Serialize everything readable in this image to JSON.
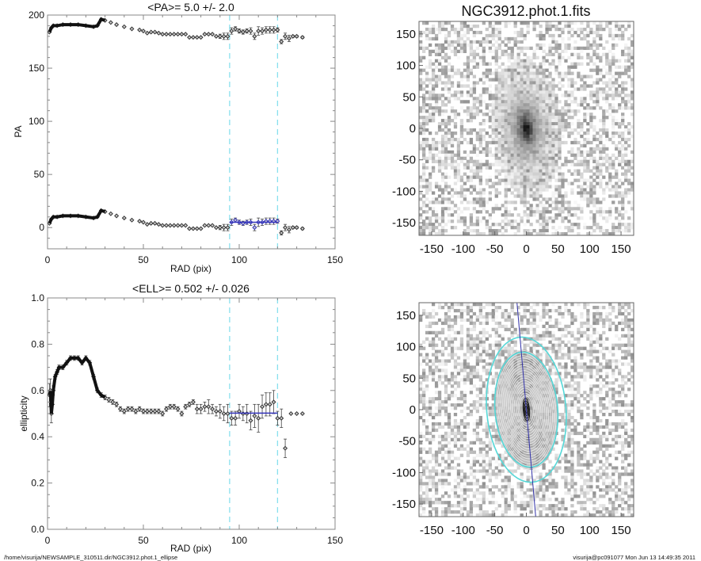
{
  "footer": {
    "path": "/home/visurija/NEWSAMPLE_310511.dir/NGC3912.phot.1_ellipse",
    "user_time": "visurija@pc091077  Mon Jun 13 14:49:35 2011"
  },
  "colors": {
    "fit": "#3333bb",
    "fit_range": "#88e0ee",
    "data": "#333333",
    "ellipse": "#55d8d8",
    "axis_line": "#3333aa"
  },
  "chart_data": [
    {
      "id": "pa",
      "type": "scatter",
      "title": "<PA>=   5.0 +/-   2.0",
      "xlabel": "RAD (pix)",
      "ylabel": "PA",
      "xlim": [
        0,
        150
      ],
      "ylim": [
        -20,
        200
      ],
      "xticks": [
        "0",
        "50",
        "100",
        "150"
      ],
      "yticks": [
        "0",
        "50",
        "100",
        "150",
        "200"
      ],
      "fit_range": [
        95,
        120
      ],
      "fit_value": 5.0,
      "series": [
        {
          "name": "PA",
          "x": [
            1,
            2,
            3,
            5,
            8,
            12,
            16,
            20,
            24,
            26,
            28,
            30,
            33,
            36,
            40,
            44,
            48,
            50,
            52,
            54,
            56,
            58,
            60,
            62,
            64,
            66,
            68,
            70,
            72,
            74,
            76,
            78,
            80,
            82,
            84,
            86,
            88,
            90,
            92,
            94,
            96,
            98,
            100,
            102,
            104,
            106,
            108,
            110,
            112,
            114,
            116,
            118,
            120,
            122,
            124,
            126,
            128,
            130,
            133
          ],
          "y": [
            4,
            8,
            10,
            10,
            11,
            11,
            11,
            10,
            9,
            10,
            16,
            15,
            13,
            11,
            9,
            7,
            6,
            5,
            3,
            4,
            4,
            3,
            2,
            2,
            2,
            2,
            2,
            2,
            2,
            -1,
            -1,
            -1,
            -1,
            2,
            2,
            2,
            0,
            0,
            0,
            0,
            5,
            7,
            5,
            4,
            5,
            5,
            0,
            5,
            5,
            6,
            6,
            6,
            6,
            -5,
            0,
            -2,
            0,
            0,
            -1
          ],
          "err": [
            0,
            0,
            0,
            0,
            0,
            0,
            0,
            0,
            0,
            0,
            0,
            0,
            0,
            0,
            0,
            0,
            0,
            0,
            0,
            0,
            0,
            0,
            0,
            0,
            0,
            0,
            0,
            0,
            0,
            0,
            0,
            0,
            0,
            0,
            0,
            0,
            0,
            2,
            3,
            3,
            3,
            2,
            2,
            2,
            2,
            3,
            3,
            4,
            3,
            3,
            3,
            3,
            2,
            2,
            3,
            3,
            1,
            1,
            1
          ]
        }
      ]
    },
    {
      "id": "ell",
      "type": "scatter",
      "title": "<ELL>= 0.502 +/-  0.026",
      "xlabel": "RAD (pix)",
      "ylabel": "ellipticity",
      "xlim": [
        0,
        150
      ],
      "ylim": [
        0.0,
        1.0
      ],
      "xticks": [
        "0",
        "50",
        "100",
        "150"
      ],
      "yticks": [
        "0.0",
        "0.2",
        "0.4",
        "0.6",
        "0.8",
        "1.0"
      ],
      "fit_range": [
        95,
        120
      ],
      "fit_value": 0.502,
      "series": [
        {
          "name": "ellipticity",
          "x": [
            1,
            1.5,
            2,
            2.5,
            3,
            4,
            5,
            6,
            8,
            10,
            12,
            14,
            16,
            18,
            20,
            22,
            24,
            26,
            28,
            30,
            32,
            34,
            36,
            38,
            40,
            42,
            44,
            46,
            48,
            50,
            52,
            54,
            56,
            58,
            60,
            62,
            64,
            66,
            68,
            70,
            72,
            74,
            76,
            78,
            80,
            82,
            84,
            86,
            88,
            90,
            92,
            94,
            96,
            98,
            100,
            102,
            104,
            106,
            108,
            110,
            112,
            114,
            116,
            118,
            120,
            122,
            124,
            127,
            130,
            133
          ],
          "y": [
            0.58,
            0.6,
            0.5,
            0.54,
            0.6,
            0.66,
            0.68,
            0.7,
            0.7,
            0.72,
            0.74,
            0.74,
            0.74,
            0.72,
            0.74,
            0.72,
            0.66,
            0.6,
            0.58,
            0.57,
            0.56,
            0.55,
            0.54,
            0.52,
            0.51,
            0.52,
            0.52,
            0.51,
            0.52,
            0.51,
            0.51,
            0.51,
            0.51,
            0.51,
            0.5,
            0.52,
            0.53,
            0.53,
            0.52,
            0.5,
            0.53,
            0.54,
            0.55,
            0.52,
            0.52,
            0.53,
            0.53,
            0.52,
            0.51,
            0.51,
            0.5,
            0.5,
            0.48,
            0.48,
            0.51,
            0.5,
            0.5,
            0.47,
            0.49,
            0.48,
            0.53,
            0.54,
            0.54,
            0.55,
            0.48,
            0.48,
            0.35,
            0.5,
            0.5,
            0.5
          ],
          "err": [
            0.05,
            0.05,
            0.04,
            0.04,
            0.02,
            0.01,
            0.01,
            0.01,
            0.01,
            0.01,
            0.01,
            0.01,
            0.01,
            0.01,
            0.01,
            0.01,
            0.01,
            0.01,
            0.01,
            0.01,
            0.01,
            0.01,
            0.01,
            0.01,
            0.01,
            0.01,
            0.01,
            0.01,
            0.01,
            0.01,
            0.01,
            0.01,
            0.01,
            0.01,
            0.01,
            0.01,
            0.01,
            0.01,
            0.01,
            0.01,
            0.01,
            0.01,
            0.01,
            0.02,
            0.02,
            0.02,
            0.03,
            0.02,
            0.02,
            0.03,
            0.03,
            0.04,
            0.03,
            0.03,
            0.03,
            0.03,
            0.04,
            0.04,
            0.05,
            0.06,
            0.05,
            0.05,
            0.05,
            0.05,
            0.03,
            0.04,
            0.04,
            0.0,
            0.0,
            0.0
          ]
        }
      ]
    },
    {
      "id": "image",
      "type": "heatmap",
      "title": "NGC3912.phot.1.fits",
      "xlim": [
        -170,
        170
      ],
      "ylim": [
        -170,
        170
      ],
      "xticks": [
        "-150",
        "-100",
        "-50",
        "0",
        "50",
        "100",
        "150"
      ],
      "yticks": [
        "-150",
        "-100",
        "-50",
        "0",
        "50",
        "100",
        "150"
      ],
      "source_pa_deg": 5.0,
      "source_ellipticity": 0.502
    },
    {
      "id": "isophotes",
      "type": "heatmap",
      "title": "",
      "xlim": [
        -170,
        170
      ],
      "ylim": [
        -170,
        170
      ],
      "xticks": [
        "-150",
        "-100",
        "-50",
        "0",
        "50",
        "100",
        "150"
      ],
      "yticks": [
        "-150",
        "-100",
        "-50",
        "0",
        "50",
        "100",
        "150"
      ],
      "fit_range": [
        95,
        120
      ],
      "pa_deg": 5.0,
      "ellipticity": 0.502
    }
  ]
}
